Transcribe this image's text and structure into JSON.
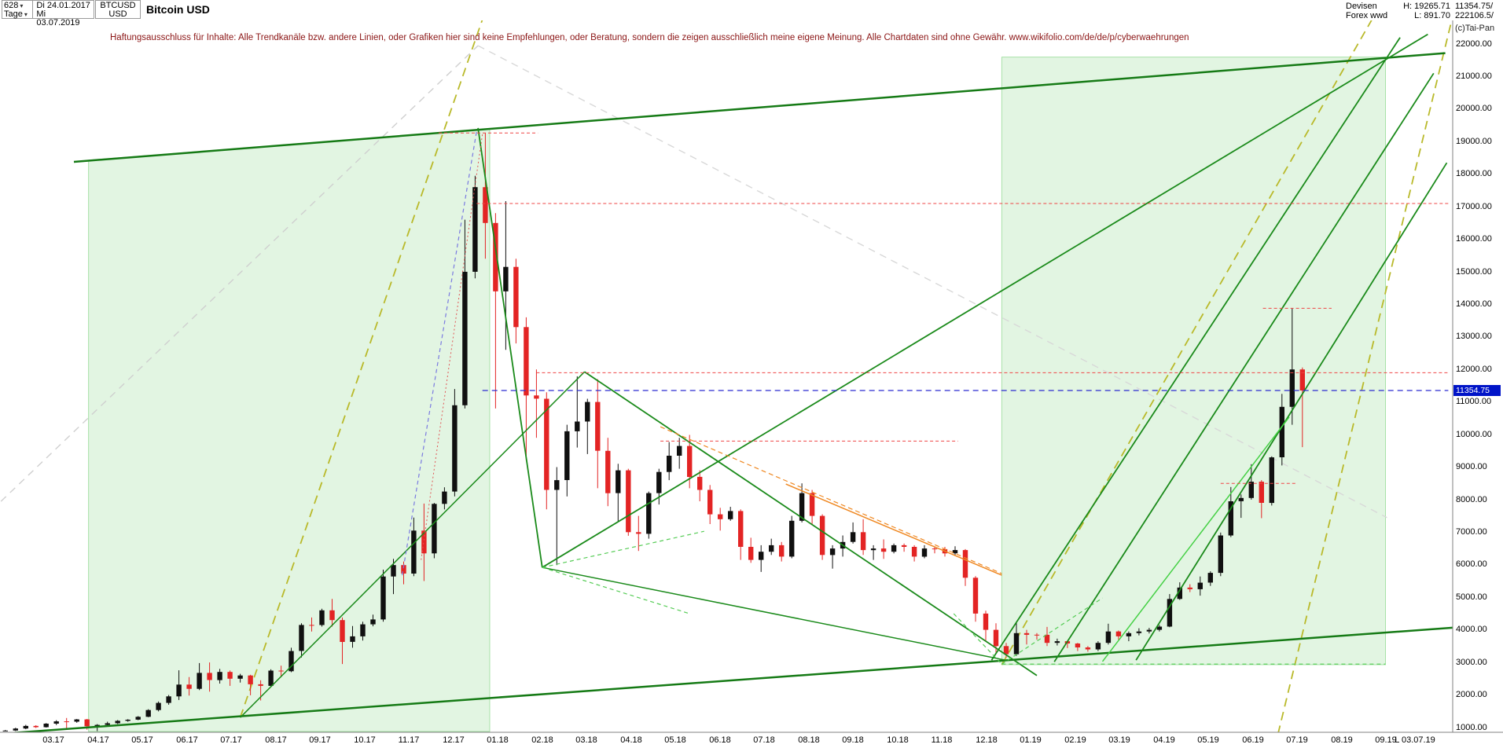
{
  "toolbar": {
    "bars": "628",
    "period_label": "Tage",
    "date_from": "Di 24.01.2017",
    "date_to": "Mi 03.07.2019",
    "symbol": "BTCUSD",
    "currency": "USD",
    "instrument": "Bitcoin USD",
    "market": "Devisen",
    "feed": "Forex wwd",
    "high": "H: 19265.71",
    "low": "L: 891.70",
    "last": "11354.75/",
    "volume": "222106.5/",
    "copyright": "(c)Tai-Pan"
  },
  "disclaimer": "Haftungsausschluss für Inhalte: Alle Trendkanäle bzw. andere Linien, oder Grafiken hier sind keine Empfehlungen, oder Beratung, sondern die zeigen ausschließlich meine eigene Meinung. Alle Chartdaten sind ohne Gewähr.  www.wikifolio.com/de/de/p/cyberwaehrungen",
  "chart_data": {
    "type": "candlestick",
    "title": "Bitcoin USD",
    "start_date": "24.01.2017",
    "end_date": "03.07.2019",
    "interval_days": 7,
    "session_high": 19265.71,
    "session_low": 891.7,
    "current_price": 11354.75,
    "y_axis": {
      "min": 1000,
      "max": 22000,
      "step": 1000
    },
    "x_labels": [
      "03.17",
      "04.17",
      "05.17",
      "06.17",
      "07.17",
      "08.17",
      "09.17",
      "10.17",
      "11.17",
      "12.17",
      "01.18",
      "02.18",
      "03.18",
      "04.18",
      "05.18",
      "06.18",
      "07.18",
      "08.18",
      "09.18",
      "10.18",
      "11.18",
      "12.18",
      "01.19",
      "02.19",
      "03.19",
      "04.19",
      "05.19",
      "06.19",
      "07.19",
      "08.19",
      "09.19"
    ],
    "x_last_label": "L 03.07.19",
    "colors": {
      "up": "#101010",
      "down": "#e32424",
      "trend": "#157a15",
      "accent_dash": "#b9b92a",
      "resistance": "#ef4444",
      "current": "#2b2bd0",
      "tag_bg": "#0014c8"
    },
    "candles": [
      [
        895,
        928,
        892,
        908
      ],
      [
        908,
        995,
        895,
        970
      ],
      [
        970,
        1085,
        950,
        1050
      ],
      [
        1050,
        1072,
        988,
        1012
      ],
      [
        1012,
        1138,
        1000,
        1120
      ],
      [
        1120,
        1228,
        1078,
        1190
      ],
      [
        1190,
        1295,
        978,
        1180
      ],
      [
        1180,
        1262,
        1148,
        1250
      ],
      [
        1250,
        1265,
        935,
        1040
      ],
      [
        1040,
        1105,
        892,
        1082
      ],
      [
        1082,
        1182,
        1058,
        1132
      ],
      [
        1132,
        1232,
        1108,
        1208
      ],
      [
        1208,
        1258,
        1178,
        1242
      ],
      [
        1242,
        1352,
        1228,
        1330
      ],
      [
        1330,
        1565,
        1318,
        1538
      ],
      [
        1538,
        1802,
        1498,
        1758
      ],
      [
        1758,
        2002,
        1702,
        1958
      ],
      [
        1958,
        2760,
        1848,
        2320
      ],
      [
        2320,
        2552,
        1982,
        2190
      ],
      [
        2190,
        2982,
        2152,
        2680
      ],
      [
        2680,
        3000,
        2102,
        2460
      ],
      [
        2460,
        2802,
        2352,
        2710
      ],
      [
        2710,
        2752,
        2282,
        2502
      ],
      [
        2502,
        2652,
        2382,
        2601
      ],
      [
        2601,
        2622,
        1992,
        2330
      ],
      [
        2330,
        2452,
        1832,
        2282
      ],
      [
        2282,
        2792,
        2252,
        2750
      ],
      [
        2750,
        2902,
        2552,
        2732
      ],
      [
        2732,
        3452,
        2702,
        3352
      ],
      [
        3352,
        4202,
        3152,
        4152
      ],
      [
        4152,
        4382,
        3952,
        4150
      ],
      [
        4150,
        4652,
        4102,
        4602
      ],
      [
        4602,
        4952,
        4102,
        4302
      ],
      [
        4302,
        4382,
        2952,
        3632
      ],
      [
        3632,
        4122,
        3452,
        3802
      ],
      [
        3802,
        4252,
        3672,
        4172
      ],
      [
        4172,
        4472,
        4112,
        4322
      ],
      [
        4322,
        5852,
        4252,
        5642
      ],
      [
        5642,
        6182,
        5102,
        5992
      ],
      [
        5992,
        6102,
        5402,
        5732
      ],
      [
        5732,
        7452,
        5652,
        7052
      ],
      [
        7052,
        7882,
        5502,
        6352
      ],
      [
        6352,
        7902,
        6202,
        7872
      ],
      [
        7872,
        8382,
        7702,
        8252
      ],
      [
        8252,
        11402,
        8102,
        10902
      ],
      [
        10902,
        16602,
        10802,
        15002
      ],
      [
        15002,
        17952,
        14802,
        17602
      ],
      [
        17602,
        19265,
        15402,
        16502
      ],
      [
        16502,
        16802,
        10802,
        14402
      ],
      [
        14402,
        17172,
        12602,
        15152
      ],
      [
        15152,
        15402,
        12802,
        13302
      ],
      [
        13302,
        13602,
        9202,
        11202
      ],
      [
        11202,
        12002,
        9902,
        11102
      ],
      [
        11102,
        11302,
        7702,
        8302
      ],
      [
        8302,
        9002,
        5992,
        8602
      ],
      [
        8602,
        10302,
        8102,
        10102
      ],
      [
        10102,
        11792,
        9602,
        10402
      ],
      [
        10402,
        11102,
        9402,
        11002
      ],
      [
        11002,
        11702,
        8352,
        9502
      ],
      [
        9502,
        9902,
        7802,
        8202
      ],
      [
        8202,
        9102,
        7332,
        8902
      ],
      [
        8902,
        8952,
        6892,
        7002
      ],
      [
        7002,
        7502,
        6427,
        6952
      ],
      [
        6952,
        8252,
        6802,
        8202
      ],
      [
        8202,
        8952,
        7852,
        8852
      ],
      [
        8852,
        9772,
        8602,
        9352
      ],
      [
        9352,
        9902,
        8952,
        9652
      ],
      [
        9652,
        9992,
        8352,
        8702
      ],
      [
        8702,
        8902,
        7952,
        8302
      ],
      [
        8302,
        8452,
        7252,
        7552
      ],
      [
        7552,
        7752,
        7052,
        7402
      ],
      [
        7402,
        7782,
        7352,
        7652
      ],
      [
        7652,
        7702,
        6152,
        6552
      ],
      [
        6552,
        6832,
        6062,
        6152
      ],
      [
        6152,
        6602,
        5782,
        6402
      ],
      [
        6402,
        6802,
        6302,
        6602
      ],
      [
        6602,
        6702,
        6102,
        6252
      ],
      [
        6252,
        7502,
        6202,
        7352
      ],
      [
        7352,
        8502,
        7302,
        8202
      ],
      [
        8202,
        8302,
        7252,
        7502
      ],
      [
        7502,
        7552,
        6152,
        6302
      ],
      [
        6302,
        6602,
        5882,
        6502
      ],
      [
        6502,
        6902,
        6252,
        6702
      ],
      [
        6702,
        7302,
        6652,
        7002
      ],
      [
        7002,
        7402,
        6302,
        6452
      ],
      [
        6452,
        6602,
        6152,
        6502
      ],
      [
        6502,
        6782,
        6182,
        6402
      ],
      [
        6402,
        6652,
        6352,
        6602
      ],
      [
        6602,
        6652,
        6402,
        6552
      ],
      [
        6552,
        6602,
        6102,
        6252
      ],
      [
        6252,
        6602,
        6202,
        6502
      ],
      [
        6502,
        6552,
        6352,
        6482
      ],
      [
        6482,
        6552,
        6252,
        6352
      ],
      [
        6352,
        6572,
        6302,
        6452
      ],
      [
        6452,
        6482,
        5352,
        5602
      ],
      [
        5602,
        5652,
        4252,
        4502
      ],
      [
        4502,
        4592,
        3652,
        4002
      ],
      [
        4002,
        4202,
        3302,
        3502
      ],
      [
        3502,
        3602,
        3152,
        3252
      ],
      [
        3252,
        4242,
        3202,
        3902
      ],
      [
        3902,
        4002,
        3552,
        3852
      ],
      [
        3852,
        3902,
        3702,
        3850
      ],
      [
        3850,
        4092,
        3502,
        3602
      ],
      [
        3602,
        3732,
        3522,
        3652
      ],
      [
        3652,
        3682,
        3442,
        3582
      ],
      [
        3582,
        3602,
        3352,
        3462
      ],
      [
        3462,
        3502,
        3332,
        3402
      ],
      [
        3402,
        3652,
        3352,
        3602
      ],
      [
        3602,
        4192,
        3552,
        3952
      ],
      [
        3952,
        3982,
        3702,
        3802
      ],
      [
        3802,
        3952,
        3652,
        3902
      ],
      [
        3902,
        4052,
        3832,
        3952
      ],
      [
        3952,
        4062,
        3892,
        4002
      ],
      [
        4002,
        4152,
        3952,
        4102
      ],
      [
        4102,
        5102,
        4082,
        4952
      ],
      [
        4952,
        5462,
        4922,
        5302
      ],
      [
        5302,
        5402,
        5162,
        5252
      ],
      [
        5252,
        5642,
        5052,
        5452
      ],
      [
        5452,
        5802,
        5352,
        5752
      ],
      [
        5752,
        6992,
        5652,
        6902
      ],
      [
        6902,
        8392,
        6852,
        7952
      ],
      [
        7952,
        8162,
        7442,
        8052
      ],
      [
        8052,
        9092,
        8002,
        8552
      ],
      [
        8552,
        8602,
        7432,
        7902
      ],
      [
        7902,
        9332,
        7822,
        9302
      ],
      [
        9302,
        11252,
        9052,
        10852
      ],
      [
        10852,
        13880,
        10302,
        12002
      ],
      [
        12002,
        12062,
        9614,
        11354.75
      ]
    ],
    "regions": [
      {
        "name": "zone-2017",
        "points": [
          [
            60,
            18430
          ],
          [
            335,
            19400
          ],
          [
            335,
            880
          ],
          [
            60,
            880
          ]
        ],
        "fill": "rgba(110,205,110,0.20)",
        "stroke": "rgba(110,205,110,0.55)"
      },
      {
        "name": "zone-2019",
        "points": [
          [
            686,
            21600
          ],
          [
            949,
            21600
          ],
          [
            949,
            2930
          ],
          [
            686,
            2930
          ]
        ],
        "fill": "rgba(110,205,110,0.20)",
        "stroke": "rgba(110,205,110,0.55)"
      }
    ],
    "lines": [
      {
        "name": "upper-channel",
        "d1": 50,
        "p1": 18380,
        "d2": 990,
        "p2": 21720,
        "color": "#157a15",
        "width": 2.5,
        "dash": null,
        "layer": "over"
      },
      {
        "name": "long-term-support",
        "d1": 0,
        "p1": 810,
        "d2": 1020,
        "p2": 4150,
        "color": "#157a15",
        "width": 2.5,
        "dash": null,
        "layer": "over"
      },
      {
        "name": "crash-line-2018",
        "d1": 327,
        "p1": 19420,
        "d2": 371,
        "p2": 5920,
        "color": "#1a8a1a",
        "width": 1.8,
        "dash": null,
        "layer": "over"
      },
      {
        "name": "recovery-line",
        "d1": 371,
        "p1": 5920,
        "d2": 978,
        "p2": 22300,
        "color": "#1a8a1a",
        "width": 1.8,
        "dash": null,
        "layer": "over"
      },
      {
        "name": "wedge-upper",
        "d1": 400,
        "p1": 11930,
        "d2": 710,
        "p2": 2600,
        "color": "#1a8a1a",
        "width": 1.8,
        "dash": null,
        "layer": "over"
      },
      {
        "name": "wedge-lower",
        "d1": 371,
        "p1": 5920,
        "d2": 690,
        "p2": 3060,
        "color": "#1a8a1a",
        "width": 1.5,
        "dash": null,
        "layer": "over"
      },
      {
        "name": "support-2017",
        "d1": 164,
        "p1": 1310,
        "d2": 400,
        "p2": 11930,
        "color": "#1a8a1a",
        "width": 1.5,
        "dash": null,
        "layer": "over"
      },
      {
        "name": "parabolic-2019-a",
        "d1": 679,
        "p1": 3070,
        "d2": 959,
        "p2": 22200,
        "color": "#1a8a1a",
        "width": 1.8,
        "dash": null,
        "layer": "over"
      },
      {
        "name": "parabolic-2019-b",
        "d1": 722,
        "p1": 3020,
        "d2": 982,
        "p2": 21100,
        "color": "#1a8a1a",
        "width": 1.8,
        "dash": null,
        "layer": "over"
      },
      {
        "name": "parabolic-2019-c",
        "d1": 778,
        "p1": 3070,
        "d2": 991,
        "p2": 18350,
        "color": "#1a8a1a",
        "width": 1.8,
        "dash": null,
        "layer": "over"
      },
      {
        "name": "rally-support-2019",
        "d1": 755,
        "p1": 3030,
        "d2": 883,
        "p2": 10540,
        "color": "#44d044",
        "width": 1.5,
        "dash": null,
        "layer": "over"
      },
      {
        "name": "base-level-dashed",
        "d1": 686,
        "p1": 2950,
        "d2": 949,
        "p2": 2950,
        "color": "#55cc55",
        "width": 1.2,
        "dash": "5,4",
        "layer": "over"
      },
      {
        "name": "fan-down-dashed",
        "d1": 371,
        "p1": 5920,
        "d2": 472,
        "p2": 4500,
        "color": "#55cc55",
        "width": 1.2,
        "dash": "5,4",
        "layer": "over"
      },
      {
        "name": "fan-up-dashed",
        "d1": 371,
        "p1": 5920,
        "d2": 482,
        "p2": 7030,
        "color": "#55cc55",
        "width": 1.2,
        "dash": "5,4",
        "layer": "over"
      },
      {
        "name": "low-fan-a",
        "d1": 653,
        "p1": 4500,
        "d2": 686,
        "p2": 2950,
        "color": "#55cc55",
        "width": 1.2,
        "dash": "5,4",
        "layer": "over"
      },
      {
        "name": "low-fan-b",
        "d1": 686,
        "p1": 2950,
        "d2": 755,
        "p2": 4980,
        "color": "#55cc55",
        "width": 1.2,
        "dash": "5,4",
        "layer": "over"
      },
      {
        "name": "accel-2017-dashed",
        "d1": 164,
        "p1": 1310,
        "d2": 335,
        "p2": 23400,
        "color": "#b9b92a",
        "width": 1.8,
        "dash": "11,7",
        "layer": "under"
      },
      {
        "name": "accel-2019-dashed",
        "d1": 686,
        "p1": 2930,
        "d2": 948,
        "p2": 23400,
        "color": "#b9b92a",
        "width": 1.8,
        "dash": "11,7",
        "layer": "under"
      },
      {
        "name": "accel-right-dashed",
        "d1": 873,
        "p1": 380,
        "d2": 998,
        "p2": 23400,
        "color": "#b9b92a",
        "width": 1.8,
        "dash": "11,7",
        "layer": "under"
      },
      {
        "name": "gray-channel-up",
        "d1": 0,
        "p1": 7950,
        "d2": 327,
        "p2": 21950,
        "color": "#cfcfcf",
        "width": 1.4,
        "dash": "9,7",
        "layer": "under"
      },
      {
        "name": "gray-channel-down",
        "d1": 327,
        "p1": 21950,
        "d2": 950,
        "p2": 7450,
        "color": "#d8d8d8",
        "width": 1.4,
        "dash": "9,7",
        "layer": "under"
      },
      {
        "name": "resistance-17100",
        "d1": 326,
        "p1": 17100,
        "d2": 992,
        "p2": 17100,
        "color": "#ef4444",
        "width": 1,
        "dash": "4,3",
        "layer": "over"
      },
      {
        "name": "resistance-11900",
        "d1": 367,
        "p1": 11900,
        "d2": 992,
        "p2": 11900,
        "color": "#ef4444",
        "width": 1,
        "dash": "4,3",
        "layer": "over"
      },
      {
        "name": "resistance-9800",
        "d1": 452,
        "p1": 9800,
        "d2": 656,
        "p2": 9800,
        "color": "#ef4444",
        "width": 1,
        "dash": "4,3",
        "layer": "over"
      },
      {
        "name": "ath-19265",
        "d1": 300,
        "p1": 19265,
        "d2": 368,
        "p2": 19265,
        "color": "#ef4444",
        "width": 1,
        "dash": "4,3",
        "layer": "over"
      },
      {
        "name": "high-13880",
        "d1": 865,
        "p1": 13880,
        "d2": 912,
        "p2": 13880,
        "color": "#ef4444",
        "width": 1,
        "dash": "4,3",
        "layer": "over"
      },
      {
        "name": "level-8500",
        "d1": 836,
        "p1": 8500,
        "d2": 888,
        "p2": 8500,
        "color": "#ef4444",
        "width": 1,
        "dash": "4,3",
        "layer": "over"
      },
      {
        "name": "current-price-line",
        "d1": 330,
        "p1": 11354.75,
        "d2": 992,
        "p2": 11354.75,
        "color": "#2b2bd0",
        "width": 1.2,
        "dash": "7,5",
        "layer": "over"
      },
      {
        "name": "downtrend-orange",
        "d1": 538,
        "p1": 8480,
        "d2": 686,
        "p2": 5680,
        "color": "#ef8822",
        "width": 1.5,
        "dash": null,
        "layer": "over"
      },
      {
        "name": "downtrend-orange-dashed",
        "d1": 452,
        "p1": 10240,
        "d2": 686,
        "p2": 5730,
        "color": "#ef8822",
        "width": 1.2,
        "dash": "6,4",
        "layer": "over"
      },
      {
        "name": "parabola-2017-violet",
        "d1": 275,
        "p1": 5680,
        "d2": 326,
        "p2": 19320,
        "color": "#7a7ae0",
        "width": 1.2,
        "dash": "5,4",
        "layer": "over"
      },
      {
        "name": "parabola-2017-red",
        "d1": 288,
        "p1": 6150,
        "d2": 330,
        "p2": 19230,
        "color": "#e05555",
        "width": 1,
        "dash": "2,3",
        "layer": "over"
      }
    ]
  }
}
